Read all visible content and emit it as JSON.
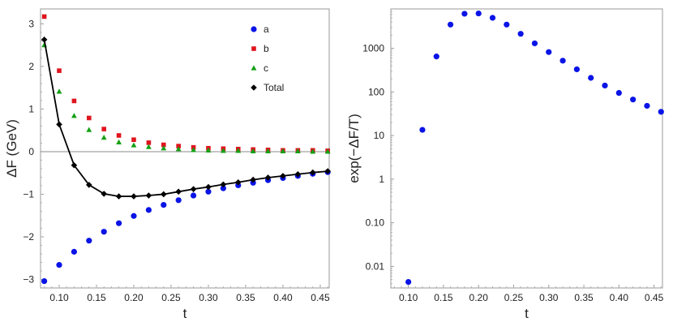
{
  "chart_data": [
    {
      "type": "scatter",
      "title": "",
      "xlabel": "t",
      "ylabel": "ΔF (GeV)",
      "xlim": [
        0.075,
        0.462
      ],
      "ylim": [
        -3.2,
        3.35
      ],
      "x_ticks": [
        0.1,
        0.15,
        0.2,
        0.25,
        0.3,
        0.35,
        0.4,
        0.45
      ],
      "x_tick_labels": [
        "0.10",
        "0.15",
        "0.20",
        "0.25",
        "0.30",
        "0.35",
        "0.40",
        "0.45"
      ],
      "y_ticks": [
        -3,
        -2,
        -1,
        0,
        1,
        2,
        3
      ],
      "y_tick_labels": [
        "−3",
        "−2",
        "−1",
        "0",
        "1",
        "2",
        "3"
      ],
      "zero_line": true,
      "grid": false,
      "legend_position": "top-right",
      "x": [
        0.08,
        0.1,
        0.12,
        0.14,
        0.16,
        0.18,
        0.2,
        0.22,
        0.24,
        0.26,
        0.28,
        0.3,
        0.32,
        0.34,
        0.36,
        0.38,
        0.4,
        0.42,
        0.44,
        0.46
      ],
      "series": [
        {
          "name": "a",
          "marker": "circle",
          "color": "#0a14e6",
          "values": [
            -3.04,
            -2.66,
            -2.35,
            -2.09,
            -1.88,
            -1.68,
            -1.51,
            -1.37,
            -1.25,
            -1.14,
            -1.03,
            -0.94,
            -0.86,
            -0.79,
            -0.73,
            -0.67,
            -0.62,
            -0.57,
            -0.52,
            -0.48
          ]
        },
        {
          "name": "b",
          "marker": "square",
          "color": "#e0141e",
          "values": [
            3.17,
            1.9,
            1.19,
            0.79,
            0.53,
            0.38,
            0.28,
            0.21,
            0.16,
            0.13,
            0.1,
            0.08,
            0.07,
            0.06,
            0.05,
            0.04,
            0.03,
            0.03,
            0.03,
            0.02
          ]
        },
        {
          "name": "c",
          "marker": "triangle",
          "color": "#14a014",
          "values": [
            2.5,
            1.41,
            0.84,
            0.51,
            0.33,
            0.22,
            0.15,
            0.11,
            0.08,
            0.06,
            0.04,
            0.03,
            0.02,
            0.02,
            0.01,
            0.01,
            0.01,
            0.01,
            0.0,
            0.0
          ]
        },
        {
          "name": "Total",
          "marker": "diamond",
          "color": "#000000",
          "line": true,
          "values": [
            2.63,
            0.64,
            -0.32,
            -0.78,
            -0.99,
            -1.05,
            -1.05,
            -1.03,
            -1.0,
            -0.94,
            -0.88,
            -0.83,
            -0.77,
            -0.72,
            -0.66,
            -0.61,
            -0.57,
            -0.53,
            -0.49,
            -0.46
          ]
        }
      ]
    },
    {
      "type": "scatter",
      "title": "",
      "xlabel": "t",
      "ylabel": "exp(−ΔF/T)",
      "yscale": "log",
      "xlim": [
        0.075,
        0.462
      ],
      "ylim": [
        0.0032,
        8000
      ],
      "x_ticks": [
        0.1,
        0.15,
        0.2,
        0.25,
        0.3,
        0.35,
        0.4,
        0.45
      ],
      "x_tick_labels": [
        "0.10",
        "0.15",
        "0.20",
        "0.25",
        "0.30",
        "0.35",
        "0.40",
        "0.45"
      ],
      "y_ticks": [
        0.01,
        0.1,
        1,
        10,
        100,
        1000
      ],
      "y_tick_labels": [
        "0.01",
        "0.10",
        "1",
        "10",
        "100",
        "1000"
      ],
      "grid": false,
      "x": [
        0.1,
        0.12,
        0.14,
        0.16,
        0.18,
        0.2,
        0.22,
        0.24,
        0.26,
        0.28,
        0.3,
        0.32,
        0.34,
        0.36,
        0.38,
        0.4,
        0.42,
        0.44,
        0.46
      ],
      "series": [
        {
          "marker": "circle",
          "color": "#0a14e6",
          "values": [
            0.0044,
            13.5,
            650,
            3500,
            6200,
            6300,
            5000,
            3500,
            2150,
            1300,
            820,
            520,
            330,
            210,
            140,
            95,
            67,
            48,
            35
          ]
        }
      ]
    }
  ]
}
